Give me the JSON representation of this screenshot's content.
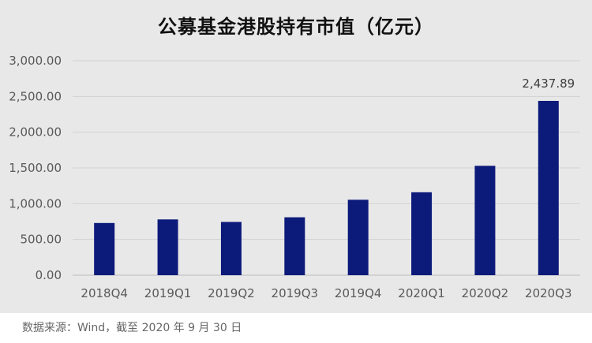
{
  "chart_data": {
    "type": "bar",
    "title": "公募基金港股持有市值（亿元）",
    "categories": [
      "2018Q4",
      "2019Q1",
      "2019Q2",
      "2019Q3",
      "2019Q4",
      "2020Q1",
      "2020Q2",
      "2020Q3"
    ],
    "values": [
      730,
      780,
      745,
      810,
      1055,
      1160,
      1530,
      2437.89
    ],
    "ylim": [
      0,
      3000
    ],
    "yticks": [
      "0.00",
      "500.00",
      "1,000.00",
      "1,500.00",
      "2,000.00",
      "2,500.00",
      "3,000.00"
    ],
    "data_labels": [
      {
        "category": "2020Q3",
        "text": "2,437.89"
      }
    ],
    "bar_color": "#0c1a7a",
    "grid": true,
    "legend": "none"
  },
  "source_note": "数据来源：Wind，截至 2020 年 9 月 30 日"
}
